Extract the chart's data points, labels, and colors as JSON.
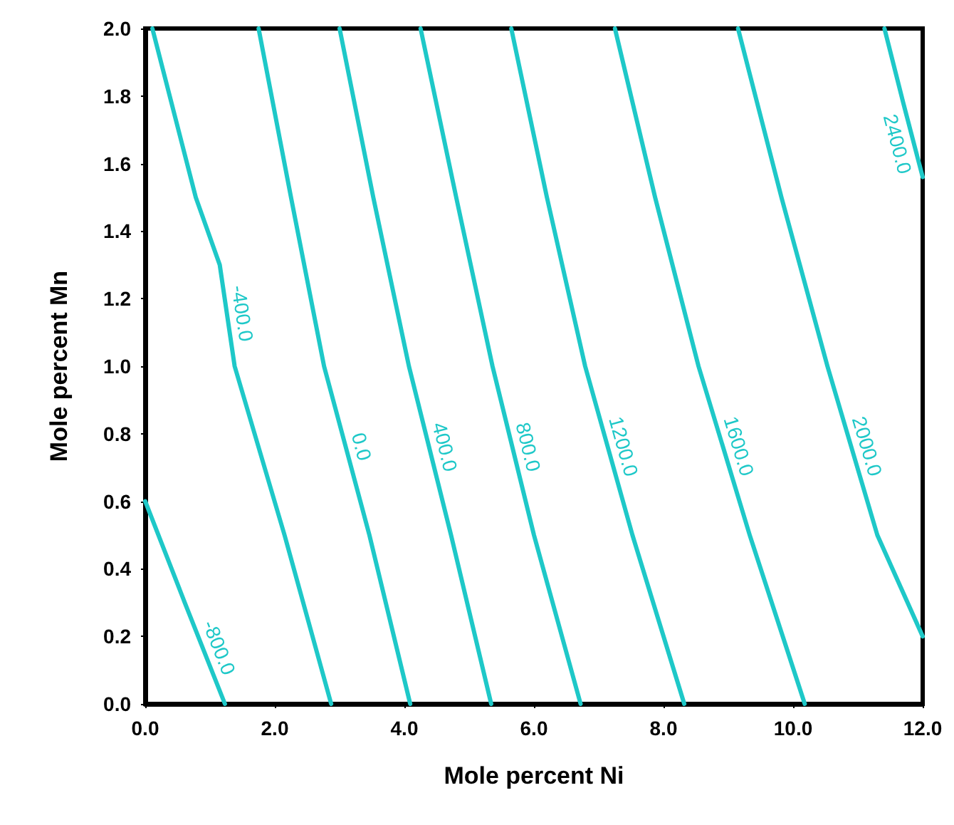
{
  "chart_data": {
    "type": "line",
    "xlabel": "Mole percent Ni",
    "ylabel": "Mole percent Mn",
    "xlim": [
      0,
      12
    ],
    "ylim": [
      0,
      2
    ],
    "xticks": [
      {
        "value": 0,
        "label": "0.0"
      },
      {
        "value": 2,
        "label": "2.0"
      },
      {
        "value": 4,
        "label": "4.0"
      },
      {
        "value": 6,
        "label": "6.0"
      },
      {
        "value": 8,
        "label": "8.0"
      },
      {
        "value": 10,
        "label": "10.0"
      },
      {
        "value": 12,
        "label": "12.0"
      }
    ],
    "yticks": [
      {
        "value": 0,
        "label": "0.0"
      },
      {
        "value": 0.2,
        "label": "0.2"
      },
      {
        "value": 0.4,
        "label": "0.4"
      },
      {
        "value": 0.6,
        "label": "0.6"
      },
      {
        "value": 0.8,
        "label": "0.8"
      },
      {
        "value": 1,
        "label": "1.0"
      },
      {
        "value": 1.2,
        "label": "1.2"
      },
      {
        "value": 1.4,
        "label": "1.4"
      },
      {
        "value": 1.6,
        "label": "1.6"
      },
      {
        "value": 1.8,
        "label": "1.8"
      },
      {
        "value": 2,
        "label": "2.0"
      }
    ],
    "grid": false,
    "legend": false,
    "marker": "none",
    "line_style": "solid",
    "series": [
      {
        "name": "-800.0",
        "color": "#1ec8c8",
        "x": [
          0,
          0.61,
          1.23
        ],
        "values": [
          0.6,
          0.3,
          0
        ]
      },
      {
        "name": "-400.0",
        "color": "#1ec8c8",
        "x": [
          0.11,
          0.78,
          1.15,
          1.38,
          2.15,
          2.87
        ],
        "values": [
          2,
          1.5,
          1.3,
          1,
          0.5,
          0
        ]
      },
      {
        "name": "0.0",
        "color": "#1ec8c8",
        "x": [
          1.75,
          2.25,
          2.76,
          3.46,
          4.09
        ],
        "values": [
          2,
          1.5,
          1,
          0.5,
          0
        ]
      },
      {
        "name": "400.0",
        "color": "#1ec8c8",
        "x": [
          3.0,
          3.52,
          4.07,
          4.72,
          5.34
        ],
        "values": [
          2,
          1.5,
          1,
          0.5,
          0
        ]
      },
      {
        "name": "800.0",
        "color": "#1ec8c8",
        "x": [
          4.25,
          4.8,
          5.36,
          6.0,
          6.72
        ],
        "values": [
          2,
          1.5,
          1,
          0.5,
          0
        ]
      },
      {
        "name": "1200.0",
        "color": "#1ec8c8",
        "x": [
          5.65,
          6.2,
          6.79,
          7.52,
          8.32
        ],
        "values": [
          2,
          1.5,
          1,
          0.5,
          0
        ]
      },
      {
        "name": "1600.0",
        "color": "#1ec8c8",
        "x": [
          7.25,
          7.87,
          8.54,
          9.33,
          10.18
        ],
        "values": [
          2,
          1.5,
          1,
          0.5,
          0
        ]
      },
      {
        "name": "2000.0",
        "color": "#1ec8c8",
        "x": [
          9.15,
          9.82,
          10.53,
          11.3,
          12
        ],
        "values": [
          2,
          1.5,
          1,
          0.5,
          0.2
        ]
      },
      {
        "name": "2400.0",
        "color": "#1ec8c8",
        "x": [
          11.41,
          11.7,
          12
        ],
        "values": [
          2,
          1.78,
          1.56
        ]
      }
    ]
  }
}
